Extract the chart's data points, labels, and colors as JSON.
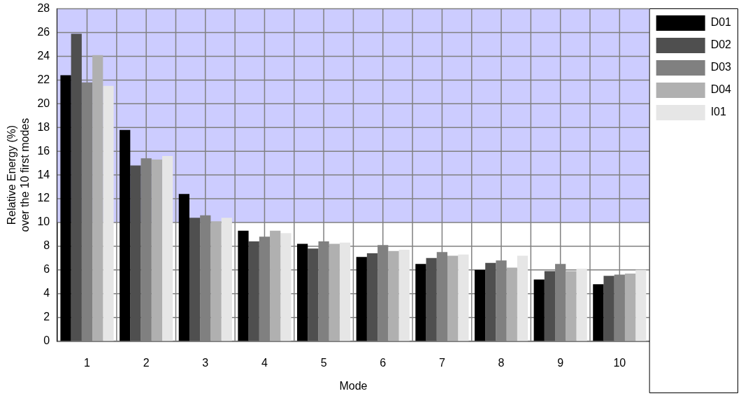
{
  "chart_data": {
    "type": "bar",
    "xlabel": "Mode",
    "ylabel": "Relative Energy (%)\nover the 10 first modes",
    "categories": [
      "1",
      "2",
      "3",
      "4",
      "5",
      "6",
      "7",
      "8",
      "9",
      "10"
    ],
    "series": [
      {
        "name": "D01",
        "color": "#000000",
        "values": [
          22.4,
          17.8,
          12.4,
          9.3,
          8.2,
          7.1,
          6.5,
          6.0,
          5.2,
          4.8
        ]
      },
      {
        "name": "D02",
        "color": "#4f4f4f",
        "values": [
          25.9,
          14.8,
          10.4,
          8.4,
          7.8,
          7.4,
          7.0,
          6.6,
          5.9,
          5.5
        ]
      },
      {
        "name": "D03",
        "color": "#808080",
        "values": [
          21.8,
          15.4,
          10.6,
          8.8,
          8.4,
          8.1,
          7.5,
          6.8,
          6.5,
          5.6
        ]
      },
      {
        "name": "D04",
        "color": "#b0b0b0",
        "values": [
          24.1,
          15.3,
          10.1,
          9.3,
          8.2,
          7.6,
          7.2,
          6.2,
          5.9,
          5.7
        ]
      },
      {
        "name": "I01",
        "color": "#e6e6e6",
        "values": [
          21.5,
          15.6,
          10.4,
          9.1,
          8.3,
          7.7,
          7.3,
          7.2,
          6.1,
          6.0
        ]
      }
    ],
    "ylim": [
      0,
      28
    ],
    "yticks": [
      0,
      2,
      4,
      6,
      8,
      10,
      12,
      14,
      16,
      18,
      20,
      22,
      24,
      26,
      28
    ],
    "bands": [
      {
        "axis": "y",
        "from": 10,
        "to": 28,
        "color": "#ccccff"
      }
    ],
    "grid": true,
    "legend": "top right"
  }
}
